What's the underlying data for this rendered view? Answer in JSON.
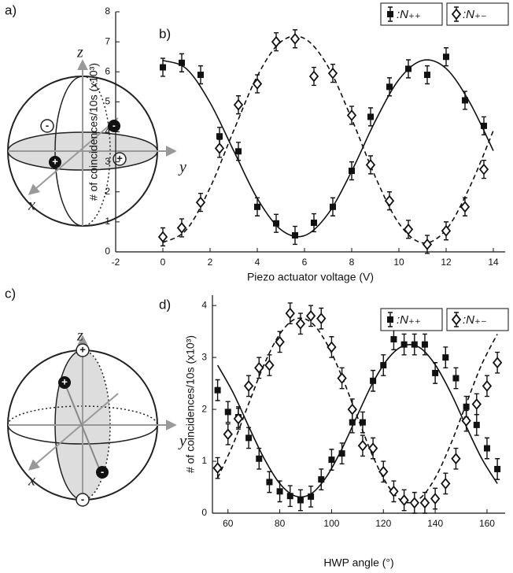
{
  "panel_labels": [
    "a)",
    "b)",
    "c)",
    "d)"
  ],
  "diagrams": [
    {
      "axis_labels": [
        "x",
        "y",
        "z"
      ],
      "signs": [
        "-",
        "-",
        "+",
        "+"
      ]
    },
    {
      "axis_labels": [
        "x",
        "y",
        "z"
      ],
      "signs": [
        "+",
        "+",
        "-",
        "-"
      ]
    }
  ],
  "chart_data": [
    {
      "type": "scatter",
      "x_label": "Piezo actuator voltage (V)",
      "y_label": "# of coincidences/10s (x10³)",
      "xlim": [
        -2,
        14.5
      ],
      "xticks": [
        -2,
        0,
        2,
        4,
        6,
        8,
        10,
        12,
        14
      ],
      "ylim": [
        0,
        8
      ],
      "yticks": [
        0,
        1,
        2,
        3,
        4,
        5,
        6,
        7,
        8
      ],
      "series": [
        {
          "name": ":N₊₊",
          "marker": "square",
          "color": "#111111",
          "x": [
            0,
            0.8,
            1.6,
            2.4,
            3.2,
            4.0,
            4.8,
            5.6,
            6.4,
            7.2,
            8.0,
            8.8,
            9.6,
            10.4,
            11.2,
            12.0,
            12.8,
            13.6
          ],
          "values": [
            6.15,
            6.3,
            5.9,
            3.85,
            3.35,
            1.5,
            0.95,
            0.55,
            0.97,
            1.5,
            2.7,
            4.5,
            5.5,
            6.1,
            5.9,
            6.5,
            5.05,
            4.2
          ],
          "errors": [
            0.3,
            0.3,
            0.3,
            0.3,
            0.3,
            0.3,
            0.3,
            0.3,
            0.3,
            0.3,
            0.3,
            0.3,
            0.3,
            0.3,
            0.3,
            0.3,
            0.3,
            0.3
          ]
        },
        {
          "name": ":N₊₋",
          "marker": "diamond",
          "color": "#111111",
          "x": [
            0,
            0.8,
            1.6,
            2.4,
            3.2,
            4.0,
            4.8,
            5.6,
            6.4,
            7.2,
            8.0,
            8.8,
            9.6,
            10.4,
            11.2,
            12.0,
            12.8,
            13.6
          ],
          "values": [
            0.5,
            0.8,
            1.65,
            3.45,
            4.9,
            5.6,
            7.0,
            7.1,
            5.85,
            5.95,
            4.55,
            2.9,
            1.7,
            0.75,
            0.25,
            0.7,
            1.5,
            2.75
          ],
          "errors": [
            0.3,
            0.3,
            0.3,
            0.3,
            0.3,
            0.3,
            0.3,
            0.3,
            0.3,
            0.3,
            0.3,
            0.3,
            0.3,
            0.3,
            0.3,
            0.3,
            0.3,
            0.3
          ]
        }
      ],
      "fits": [
        {
          "dashed": false,
          "x": [
            0,
            1,
            2,
            3,
            4,
            5,
            6,
            7,
            8,
            9,
            10,
            11,
            12,
            13,
            14
          ],
          "values": [
            6.38,
            6.1,
            4.97,
            3.37,
            1.78,
            0.74,
            0.54,
            1.27,
            2.69,
            4.36,
            5.74,
            6.38,
            6.11,
            4.98,
            3.37
          ]
        },
        {
          "dashed": true,
          "x": [
            0,
            1,
            2,
            3,
            4,
            5,
            6,
            7,
            8,
            9,
            10,
            11,
            12,
            13,
            14
          ],
          "values": [
            0.31,
            0.74,
            2.14,
            4.04,
            5.86,
            7.0,
            7.11,
            6.17,
            4.43,
            2.5,
            0.95,
            0.3,
            0.74,
            2.16,
            4.04
          ]
        }
      ]
    },
    {
      "type": "scatter",
      "x_label": "HWP angle (°)",
      "y_label": "# of coincidences/10s (x10³)",
      "xlim": [
        54,
        167
      ],
      "xticks": [
        60,
        80,
        100,
        120,
        140,
        160
      ],
      "ylim": [
        0,
        4.2
      ],
      "yticks": [
        0,
        1,
        2,
        3,
        4
      ],
      "series": [
        {
          "name": ":N₊₊",
          "marker": "square",
          "color": "#111111",
          "x": [
            56,
            60,
            64,
            68,
            72,
            76,
            80,
            84,
            88,
            92,
            96,
            100,
            104,
            108,
            112,
            116,
            120,
            124,
            128,
            132,
            136,
            140,
            144,
            148,
            152,
            156,
            160,
            164
          ],
          "values": [
            2.37,
            1.95,
            1.85,
            1.45,
            1.05,
            0.6,
            0.42,
            0.33,
            0.25,
            0.32,
            0.65,
            1.03,
            1.15,
            1.75,
            1.75,
            2.55,
            2.85,
            3.35,
            3.25,
            3.25,
            3.25,
            2.7,
            3.0,
            2.6,
            2.05,
            1.7,
            1.25,
            0.85
          ],
          "errors": [
            0.2,
            0.2,
            0.2,
            0.2,
            0.2,
            0.2,
            0.2,
            0.2,
            0.2,
            0.2,
            0.2,
            0.2,
            0.2,
            0.2,
            0.2,
            0.2,
            0.2,
            0.2,
            0.2,
            0.2,
            0.2,
            0.2,
            0.2,
            0.2,
            0.2,
            0.2,
            0.2,
            0.2
          ]
        },
        {
          "name": ":N₊₋",
          "marker": "diamond",
          "color": "#111111",
          "x": [
            56,
            60,
            64,
            68,
            72,
            76,
            80,
            84,
            88,
            92,
            96,
            100,
            104,
            108,
            112,
            116,
            120,
            124,
            128,
            132,
            136,
            140,
            144,
            148,
            152,
            156,
            160,
            164
          ],
          "values": [
            0.87,
            1.52,
            1.82,
            2.45,
            2.8,
            2.85,
            3.3,
            3.85,
            3.65,
            3.8,
            3.75,
            3.2,
            2.6,
            2.0,
            1.3,
            1.25,
            0.8,
            0.42,
            0.25,
            0.2,
            0.2,
            0.28,
            0.57,
            1.05,
            1.78,
            2.1,
            2.45,
            2.9
          ],
          "errors": [
            0.2,
            0.2,
            0.2,
            0.2,
            0.2,
            0.2,
            0.2,
            0.2,
            0.2,
            0.2,
            0.2,
            0.2,
            0.2,
            0.2,
            0.2,
            0.2,
            0.2,
            0.2,
            0.2,
            0.2,
            0.2,
            0.2,
            0.2,
            0.2,
            0.2,
            0.2,
            0.2,
            0.2
          ]
        }
      ],
      "fits": [
        {
          "dashed": false,
          "x": [
            56,
            62,
            68,
            74,
            80,
            86,
            92,
            98,
            104,
            110,
            116,
            122,
            128,
            134,
            140,
            146,
            152,
            158,
            164
          ],
          "values": [
            2.85,
            2.32,
            1.67,
            1.05,
            0.57,
            0.33,
            0.37,
            0.7,
            1.24,
            1.89,
            2.52,
            2.99,
            3.23,
            3.19,
            2.86,
            2.32,
            1.67,
            1.05,
            0.57
          ]
        },
        {
          "dashed": true,
          "x": [
            56,
            62,
            68,
            74,
            80,
            86,
            92,
            98,
            104,
            110,
            116,
            122,
            128,
            134,
            140,
            146,
            152,
            158,
            164
          ],
          "values": [
            0.68,
            1.33,
            2.11,
            2.87,
            3.45,
            3.74,
            3.68,
            3.28,
            2.63,
            1.85,
            1.09,
            0.51,
            0.22,
            0.28,
            0.68,
            1.33,
            2.11,
            2.87,
            3.45
          ]
        }
      ]
    }
  ]
}
